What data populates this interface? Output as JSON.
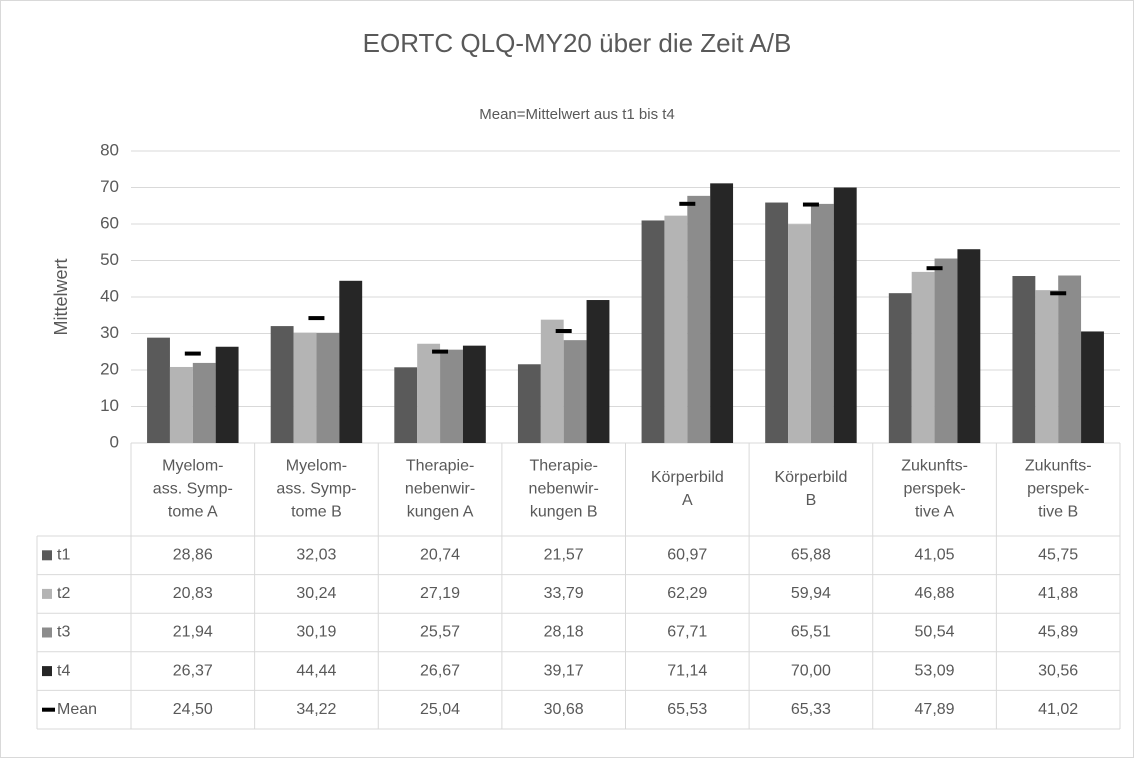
{
  "chart_data": {
    "type": "bar",
    "title": "EORTC QLQ-MY20 über die Zeit A/B",
    "subtitle": "Mean=Mittelwert aus t1 bis t4",
    "y_label": "Mittelwert",
    "categories": [
      [
        "Myelom-",
        "ass. Symp-",
        "tome A"
      ],
      [
        "Myelom-",
        "ass. Symp-",
        "tome B"
      ],
      [
        "Therapie-",
        "nebenwir-",
        "kungen A"
      ],
      [
        "Therapie-",
        "nebenwir-",
        "kungen B"
      ],
      [
        "Körperbild",
        "A"
      ],
      [
        "Körperbild",
        "B"
      ],
      [
        "Zukunfts-",
        "perspek-",
        "tive A"
      ],
      [
        "Zukunfts-",
        "perspek-",
        "tive B"
      ]
    ],
    "series": [
      {
        "name": "t1",
        "color": "#5a5a5a",
        "values": [
          28.86,
          32.03,
          20.74,
          21.57,
          60.97,
          65.88,
          41.05,
          45.75
        ],
        "value_labels": [
          "28,86",
          "32,03",
          "20,74",
          "21,57",
          "60,97",
          "65,88",
          "41,05",
          "45,75"
        ]
      },
      {
        "name": "t2",
        "color": "#b4b4b4",
        "values": [
          20.83,
          30.24,
          27.19,
          33.79,
          62.29,
          59.94,
          46.88,
          41.88
        ],
        "value_labels": [
          "20,83",
          "30,24",
          "27,19",
          "33,79",
          "62,29",
          "59,94",
          "46,88",
          "41,88"
        ]
      },
      {
        "name": "t3",
        "color": "#8c8c8c",
        "values": [
          21.94,
          30.19,
          25.57,
          28.18,
          67.71,
          65.51,
          50.54,
          45.89
        ],
        "value_labels": [
          "21,94",
          "30,19",
          "25,57",
          "28,18",
          "67,71",
          "65,51",
          "50,54",
          "45,89"
        ]
      },
      {
        "name": "t4",
        "color": "#262626",
        "values": [
          26.37,
          44.44,
          26.67,
          39.17,
          71.14,
          70.0,
          53.09,
          30.56
        ],
        "value_labels": [
          "26,37",
          "44,44",
          "26,67",
          "39,17",
          "71,14",
          "70,00",
          "53,09",
          "30,56"
        ]
      },
      {
        "name": "Mean",
        "color": "#000000",
        "marker": "dash",
        "values": [
          24.5,
          34.22,
          25.04,
          30.68,
          65.53,
          65.33,
          47.89,
          41.02
        ],
        "value_labels": [
          "24,50",
          "34,22",
          "25,04",
          "30,68",
          "65,53",
          "65,33",
          "47,89",
          "41,02"
        ]
      }
    ],
    "ylim": [
      0,
      80
    ],
    "yticks": [
      0,
      10,
      20,
      30,
      40,
      50,
      60,
      70,
      80
    ],
    "grid": true,
    "legend": "table"
  }
}
